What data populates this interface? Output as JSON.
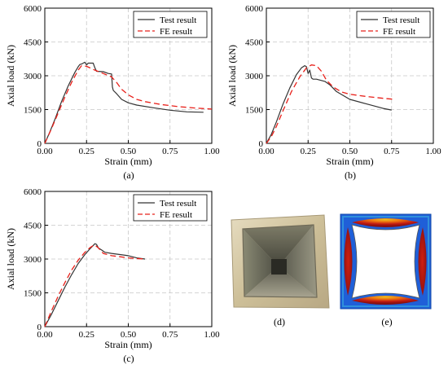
{
  "figure": {
    "photo_caption": "(d)",
    "fe_caption": "(e)"
  },
  "colors": {
    "test": "#333333",
    "fe": "#e8201a",
    "grid": "#c8c8c8",
    "fe_blue": "#1f5fd8",
    "fe_red": "#c21a12",
    "fe_orange": "#f07a10",
    "fe_yellow": "#e8c020",
    "fe_cyan": "#3ab0e0"
  },
  "chart_data": [
    {
      "type": "line",
      "caption": "(a)",
      "xlabel": "Strain (mm)",
      "ylabel": "Axial load (kN)",
      "xlim": [
        0,
        1.0
      ],
      "ylim": [
        0,
        6000
      ],
      "xticks": [
        0.0,
        0.25,
        0.5,
        0.75,
        1.0
      ],
      "xtick_labels": [
        "0.00",
        "0.25",
        "0.50",
        "0.75",
        "1.00"
      ],
      "yticks": [
        0,
        1500,
        3000,
        4500,
        6000
      ],
      "ytick_labels": [
        "0",
        "1500",
        "3000",
        "4500",
        "6000"
      ],
      "grid": true,
      "legend_position": "top-right",
      "series": [
        {
          "name": "Test result",
          "style": "solid",
          "x": [
            0,
            0.03,
            0.06,
            0.1,
            0.14,
            0.18,
            0.2,
            0.21,
            0.22,
            0.24,
            0.25,
            0.26,
            0.29,
            0.3,
            0.31,
            0.35,
            0.38,
            0.4,
            0.405,
            0.41,
            0.43,
            0.46,
            0.5,
            0.55,
            0.65,
            0.75,
            0.85,
            0.95
          ],
          "y": [
            0,
            500,
            1050,
            1850,
            2550,
            3150,
            3400,
            3500,
            3520,
            3600,
            3480,
            3560,
            3560,
            3350,
            3200,
            3180,
            3100,
            3080,
            2500,
            2350,
            2200,
            1950,
            1800,
            1700,
            1580,
            1470,
            1400,
            1380
          ]
        },
        {
          "name": "FE result",
          "style": "dashed",
          "x": [
            0,
            0.04,
            0.08,
            0.12,
            0.16,
            0.2,
            0.22,
            0.25,
            0.3,
            0.35,
            0.4,
            0.43,
            0.46,
            0.5,
            0.55,
            0.6,
            0.7,
            0.8,
            0.9,
            1.0
          ],
          "y": [
            0,
            650,
            1350,
            2050,
            2700,
            3250,
            3450,
            3420,
            3250,
            3100,
            2950,
            2700,
            2400,
            2150,
            1950,
            1850,
            1720,
            1630,
            1570,
            1520
          ]
        }
      ]
    },
    {
      "type": "line",
      "caption": "(b)",
      "xlabel": "Strain (mm)",
      "ylabel": "Axial load (kN)",
      "xlim": [
        0,
        1.0
      ],
      "ylim": [
        0,
        6000
      ],
      "xticks": [
        0.0,
        0.25,
        0.5,
        0.75,
        1.0
      ],
      "xtick_labels": [
        "0.00",
        "0.25",
        "0.50",
        "0.75",
        "1.00"
      ],
      "yticks": [
        0,
        1500,
        3000,
        4500,
        6000
      ],
      "ytick_labels": [
        "0",
        "1500",
        "3000",
        "4500",
        "6000"
      ],
      "grid": true,
      "legend_position": "top-right",
      "series": [
        {
          "name": "Test result",
          "style": "solid",
          "x": [
            0,
            0.03,
            0.06,
            0.1,
            0.14,
            0.18,
            0.21,
            0.23,
            0.24,
            0.25,
            0.26,
            0.27,
            0.28,
            0.3,
            0.35,
            0.38,
            0.42,
            0.5,
            0.6,
            0.7,
            0.75
          ],
          "y": [
            0,
            400,
            950,
            1750,
            2450,
            3050,
            3350,
            3450,
            3400,
            3100,
            3250,
            2900,
            2850,
            2850,
            2750,
            2600,
            2300,
            1950,
            1750,
            1550,
            1480
          ]
        },
        {
          "name": "FE result",
          "style": "dashed",
          "x": [
            0,
            0.03,
            0.06,
            0.1,
            0.15,
            0.2,
            0.24,
            0.27,
            0.3,
            0.33,
            0.36,
            0.4,
            0.45,
            0.5,
            0.6,
            0.7,
            0.77
          ],
          "y": [
            0,
            300,
            750,
            1450,
            2300,
            2950,
            3350,
            3480,
            3450,
            3200,
            2800,
            2500,
            2280,
            2180,
            2080,
            2000,
            1950
          ]
        }
      ]
    },
    {
      "type": "line",
      "caption": "(c)",
      "xlabel": "Strain (mm)",
      "ylabel": "Axial load (kN)",
      "xlim": [
        0,
        1.0
      ],
      "ylim": [
        0,
        6000
      ],
      "xticks": [
        0.0,
        0.25,
        0.5,
        0.75,
        1.0
      ],
      "xtick_labels": [
        "0.00",
        "0.25",
        "0.50",
        "0.75",
        "1.00"
      ],
      "yticks": [
        0,
        1500,
        3000,
        4500,
        6000
      ],
      "ytick_labels": [
        "0",
        "1500",
        "3000",
        "4500",
        "6000"
      ],
      "grid": true,
      "legend_position": "top-right",
      "series": [
        {
          "name": "Test result",
          "style": "solid",
          "x": [
            0,
            0.04,
            0.08,
            0.12,
            0.16,
            0.2,
            0.24,
            0.27,
            0.29,
            0.3,
            0.31,
            0.32,
            0.34,
            0.36,
            0.4,
            0.45,
            0.5,
            0.55,
            0.6
          ],
          "y": [
            0,
            550,
            1150,
            1750,
            2300,
            2800,
            3200,
            3450,
            3600,
            3680,
            3650,
            3500,
            3400,
            3300,
            3250,
            3200,
            3150,
            3050,
            3000
          ]
        },
        {
          "name": "FE result",
          "style": "dashed",
          "x": [
            0,
            0.04,
            0.08,
            0.12,
            0.16,
            0.2,
            0.24,
            0.27,
            0.29,
            0.3,
            0.32,
            0.35,
            0.4,
            0.45,
            0.5,
            0.55,
            0.6
          ],
          "y": [
            0,
            700,
            1350,
            1950,
            2500,
            2950,
            3300,
            3500,
            3600,
            3620,
            3500,
            3250,
            3150,
            3100,
            3050,
            3020,
            3000
          ]
        }
      ]
    }
  ]
}
